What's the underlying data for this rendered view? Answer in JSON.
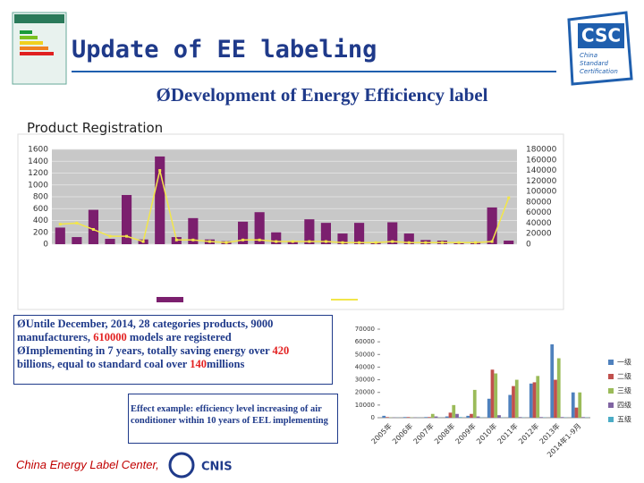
{
  "header": {
    "title": "Update of EE labeling",
    "subtitle": "Development of Energy Efficiency label",
    "logo": {
      "name": "CSC",
      "tagline": [
        "China",
        "Standard",
        "Certification"
      ]
    }
  },
  "section_title": "Product Registration",
  "chart_data": [
    {
      "type": "bar_line",
      "categories": [
        null,
        null,
        null,
        null,
        null,
        null,
        null,
        null,
        null,
        null,
        null,
        null,
        null,
        null,
        null,
        null,
        null,
        null,
        null,
        null,
        null,
        null,
        null,
        null,
        null,
        null,
        null,
        null
      ],
      "series": [
        {
          "color": "#7b1f6e",
          "values": [
            280,
            120,
            580,
            90,
            830,
            80,
            1480,
            120,
            440,
            80,
            50,
            380,
            540,
            200,
            40,
            420,
            360,
            180,
            360,
            30,
            370,
            180,
            70,
            60,
            20,
            40,
            620,
            60
          ]
        },
        {
          "color": "#f2e64a",
          "axis": "y2",
          "values": [
            38000,
            40000,
            28000,
            15000,
            15000,
            5000,
            140000,
            8000,
            8000,
            5000,
            3000,
            8000,
            8000,
            5000,
            5000,
            5000,
            5000,
            3000,
            3000,
            3000,
            5000,
            3000,
            3000,
            3000,
            3000,
            3000,
            5000,
            88000
          ]
        }
      ],
      "ylim": [
        0,
        1600
      ],
      "yticks": [
        0,
        200,
        400,
        600,
        800,
        1000,
        1200,
        1400,
        1600
      ],
      "y2lim": [
        0,
        180000
      ],
      "y2ticks": [
        0,
        20000,
        40000,
        60000,
        80000,
        100000,
        120000,
        140000,
        160000,
        180000
      ],
      "grid": true
    },
    {
      "type": "bar",
      "categories": [
        "2005年",
        "2006年",
        "2007年",
        "2008年",
        "2009年",
        "2010年",
        "2011年",
        "2012年",
        "2013年",
        "2014年1-9月"
      ],
      "series": [
        {
          "name": "一级",
          "color": "#4f81bd",
          "values": [
            1500,
            500,
            500,
            1000,
            1500,
            15000,
            18000,
            27000,
            58000,
            20000
          ]
        },
        {
          "name": "二级",
          "color": "#c0504d",
          "values": [
            500,
            500,
            500,
            4000,
            3000,
            38000,
            25000,
            28000,
            30000,
            8000
          ]
        },
        {
          "name": "三级",
          "color": "#9bbb59",
          "values": [
            200,
            200,
            3000,
            10000,
            22000,
            35000,
            30000,
            33000,
            47000,
            20000
          ]
        },
        {
          "name": "四级",
          "color": "#8064a2",
          "values": [
            200,
            200,
            1000,
            3000,
            1000,
            2000,
            500,
            500,
            500,
            500
          ]
        },
        {
          "name": "五级",
          "color": "#4bacc6",
          "values": [
            100,
            100,
            100,
            500,
            200,
            200,
            200,
            200,
            200,
            200
          ]
        }
      ],
      "ylim": [
        0,
        70000
      ],
      "yticks": [
        0,
        10000,
        20000,
        30000,
        40000,
        50000,
        60000,
        70000
      ],
      "legend": "right"
    }
  ],
  "notes": {
    "bullets": [
      [
        "Untile December, 2014, 28 categories products, 9000 manufacturers, ",
        "610000",
        " models are registered"
      ],
      [
        "Implementing in 7 years, totally saving energy over ",
        "420",
        " billions, equal to standard coal over ",
        "140",
        "millions"
      ]
    ],
    "example": "Effect example: efficiency level increasing of air conditioner within 10 years of EEL implementing"
  },
  "footer": {
    "org": "China Energy Label Center,",
    "logo": "CNIS"
  }
}
